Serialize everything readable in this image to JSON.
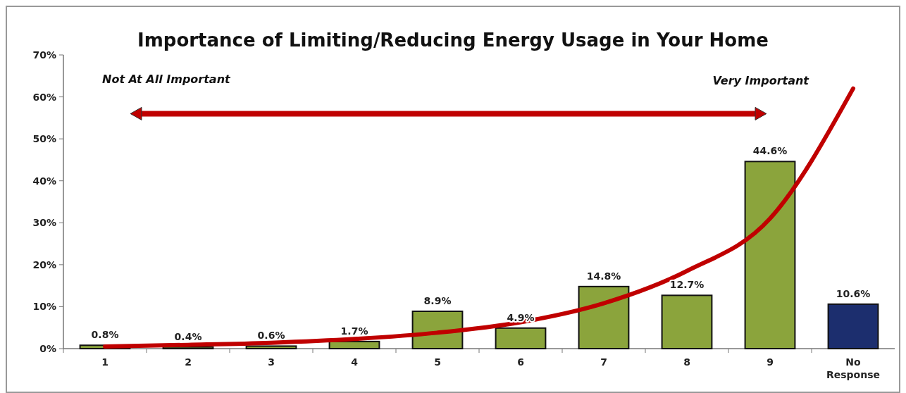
{
  "chart_data": {
    "type": "bar",
    "title": "Importance of Limiting/Reducing Energy Usage in Your Home",
    "categories": [
      "1",
      "2",
      "3",
      "4",
      "5",
      "6",
      "7",
      "8",
      "9",
      "No Response"
    ],
    "series": [
      {
        "values": [
          0.8,
          0.4,
          0.6,
          1.7,
          8.9,
          4.9,
          14.8,
          12.7,
          44.6,
          10.6
        ],
        "colors": [
          "#8ba43c",
          "#8ba43c",
          "#8ba43c",
          "#8ba43c",
          "#8ba43c",
          "#8ba43c",
          "#8ba43c",
          "#8ba43c",
          "#8ba43c",
          "#1c2e6e"
        ],
        "value_labels": [
          "0.8%",
          "0.4%",
          "0.6%",
          "1.7%",
          "8.9%",
          "4.9%",
          "14.8%",
          "12.7%",
          "44.6%",
          "10.6%"
        ]
      },
      {
        "type": "line",
        "color": "#c00000",
        "values": [
          0.5,
          0.9,
          1.4,
          2.3,
          3.8,
          6.3,
          10.8,
          18.5,
          31,
          62
        ]
      }
    ],
    "ylim": [
      0,
      70
    ],
    "yticks": [
      {
        "value": 0,
        "label": "0%"
      },
      {
        "value": 10,
        "label": "10%"
      },
      {
        "value": 20,
        "label": "20%"
      },
      {
        "value": 30,
        "label": "30%"
      },
      {
        "value": 40,
        "label": "40%"
      },
      {
        "value": 50,
        "label": "50%"
      },
      {
        "value": 60,
        "label": "60%"
      },
      {
        "value": 70,
        "label": "70%"
      }
    ],
    "annotations": [
      "Not At All Important",
      "Very Important"
    ],
    "grid": false
  }
}
